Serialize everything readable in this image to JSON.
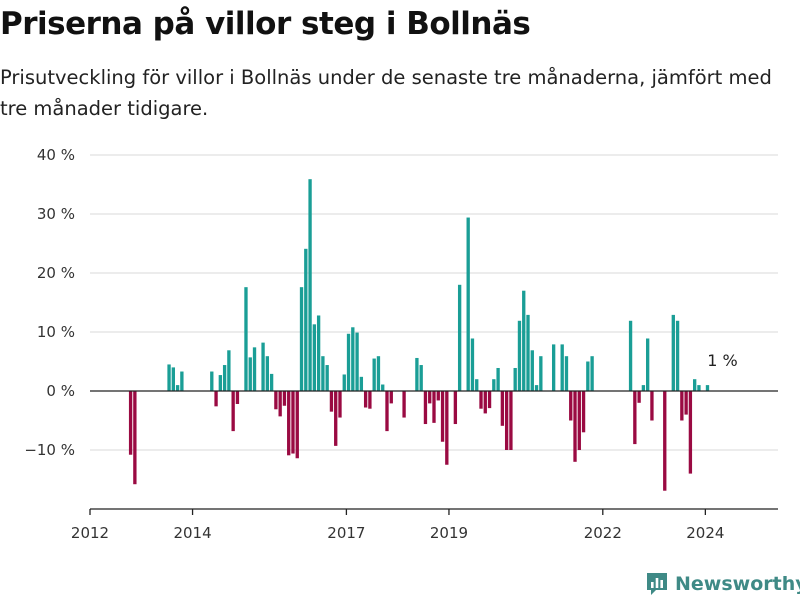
{
  "header": {
    "title": "Priserna på villor steg i Bollnäs",
    "subtitle": "Prisutveckling för villor i Bollnäs under de senaste tre månaderna, jämfört med tre månader tidigare."
  },
  "brand": {
    "name": "Newsworthy",
    "icon": "newsworthy-logo-icon",
    "color": "#3f8a86"
  },
  "colors": {
    "positive": "#1a9e96",
    "negative": "#9a0a42",
    "grid": "#d9d9d9",
    "axis": "#222222"
  },
  "chart_data": {
    "type": "bar",
    "title": "Priserna på villor steg i Bollnäs",
    "subtitle": "Prisutveckling för villor i Bollnäs under de senaste tre månaderna, jämfört med tre månader tidigare.",
    "xlabel": "",
    "ylabel": "",
    "ylim": [
      -20,
      40
    ],
    "xlim": [
      "2012-01",
      "2025-06"
    ],
    "yticks": [
      -10,
      0,
      10,
      20,
      30,
      40
    ],
    "ytick_labels": [
      "−10 %",
      "0 %",
      "10 %",
      "20 %",
      "30 %",
      "40 %"
    ],
    "xticks": [
      "2012-01",
      "2014-01",
      "2017-01",
      "2019-01",
      "2022-01",
      "2024-01"
    ],
    "xtick_labels": [
      "2012",
      "2014",
      "2017",
      "2019",
      "2022",
      "2024"
    ],
    "grid": true,
    "annotation": {
      "date": "2024-05",
      "value": 1,
      "text": "1 %"
    },
    "points": [
      {
        "date": "2012-10",
        "value": -10.8
      },
      {
        "date": "2012-11",
        "value": -15.8
      },
      {
        "date": "2013-07",
        "value": 4.5
      },
      {
        "date": "2013-08",
        "value": 4.0
      },
      {
        "date": "2013-09",
        "value": 1.0
      },
      {
        "date": "2013-10",
        "value": 3.3
      },
      {
        "date": "2014-05",
        "value": 3.3
      },
      {
        "date": "2014-06",
        "value": -2.6
      },
      {
        "date": "2014-07",
        "value": 2.7
      },
      {
        "date": "2014-08",
        "value": 4.4
      },
      {
        "date": "2014-09",
        "value": 6.9
      },
      {
        "date": "2014-10",
        "value": -6.8
      },
      {
        "date": "2014-11",
        "value": -2.2
      },
      {
        "date": "2015-01",
        "value": 17.6
      },
      {
        "date": "2015-02",
        "value": 5.7
      },
      {
        "date": "2015-03",
        "value": 7.4
      },
      {
        "date": "2015-05",
        "value": 8.2
      },
      {
        "date": "2015-06",
        "value": 5.9
      },
      {
        "date": "2015-07",
        "value": 2.9
      },
      {
        "date": "2015-08",
        "value": -3.1
      },
      {
        "date": "2015-09",
        "value": -4.3
      },
      {
        "date": "2015-10",
        "value": -2.5
      },
      {
        "date": "2015-11",
        "value": -10.9
      },
      {
        "date": "2015-12",
        "value": -10.6
      },
      {
        "date": "2016-01",
        "value": -11.4
      },
      {
        "date": "2016-02",
        "value": 17.6
      },
      {
        "date": "2016-03",
        "value": 24.1
      },
      {
        "date": "2016-04",
        "value": 35.9
      },
      {
        "date": "2016-05",
        "value": 11.3
      },
      {
        "date": "2016-06",
        "value": 12.8
      },
      {
        "date": "2016-07",
        "value": 5.9
      },
      {
        "date": "2016-08",
        "value": 4.4
      },
      {
        "date": "2016-09",
        "value": -3.5
      },
      {
        "date": "2016-10",
        "value": -9.3
      },
      {
        "date": "2016-11",
        "value": -4.5
      },
      {
        "date": "2016-12",
        "value": 2.8
      },
      {
        "date": "2017-01",
        "value": 9.7
      },
      {
        "date": "2017-02",
        "value": 10.8
      },
      {
        "date": "2017-03",
        "value": 9.9
      },
      {
        "date": "2017-04",
        "value": 2.4
      },
      {
        "date": "2017-05",
        "value": -2.8
      },
      {
        "date": "2017-06",
        "value": -3.0
      },
      {
        "date": "2017-07",
        "value": 5.5
      },
      {
        "date": "2017-08",
        "value": 5.9
      },
      {
        "date": "2017-09",
        "value": 1.1
      },
      {
        "date": "2017-10",
        "value": -6.8
      },
      {
        "date": "2017-11",
        "value": -2.1
      },
      {
        "date": "2018-02",
        "value": -4.5
      },
      {
        "date": "2018-05",
        "value": 5.6
      },
      {
        "date": "2018-06",
        "value": 4.4
      },
      {
        "date": "2018-07",
        "value": -5.6
      },
      {
        "date": "2018-08",
        "value": -2.1
      },
      {
        "date": "2018-09",
        "value": -5.4
      },
      {
        "date": "2018-10",
        "value": -1.6
      },
      {
        "date": "2018-11",
        "value": -8.6
      },
      {
        "date": "2018-12",
        "value": -12.5
      },
      {
        "date": "2019-02",
        "value": -5.6
      },
      {
        "date": "2019-03",
        "value": 18.0
      },
      {
        "date": "2019-05",
        "value": 29.4
      },
      {
        "date": "2019-06",
        "value": 8.9
      },
      {
        "date": "2019-07",
        "value": 2.0
      },
      {
        "date": "2019-08",
        "value": -3.0
      },
      {
        "date": "2019-09",
        "value": -3.8
      },
      {
        "date": "2019-10",
        "value": -2.9
      },
      {
        "date": "2019-11",
        "value": 2.0
      },
      {
        "date": "2019-12",
        "value": 3.9
      },
      {
        "date": "2020-01",
        "value": -5.9
      },
      {
        "date": "2020-02",
        "value": -10.0
      },
      {
        "date": "2020-03",
        "value": -10.0
      },
      {
        "date": "2020-04",
        "value": 3.9
      },
      {
        "date": "2020-05",
        "value": 11.9
      },
      {
        "date": "2020-06",
        "value": 17.0
      },
      {
        "date": "2020-07",
        "value": 12.9
      },
      {
        "date": "2020-08",
        "value": 6.9
      },
      {
        "date": "2020-09",
        "value": 1.0
      },
      {
        "date": "2020-10",
        "value": 5.9
      },
      {
        "date": "2021-01",
        "value": 7.9
      },
      {
        "date": "2021-03",
        "value": 7.9
      },
      {
        "date": "2021-04",
        "value": 5.9
      },
      {
        "date": "2021-05",
        "value": -5.0
      },
      {
        "date": "2021-06",
        "value": -12.0
      },
      {
        "date": "2021-07",
        "value": -10.0
      },
      {
        "date": "2021-08",
        "value": -7.0
      },
      {
        "date": "2021-09",
        "value": 5.0
      },
      {
        "date": "2021-10",
        "value": 5.9
      },
      {
        "date": "2022-07",
        "value": 11.9
      },
      {
        "date": "2022-08",
        "value": -9.0
      },
      {
        "date": "2022-09",
        "value": -2.0
      },
      {
        "date": "2022-10",
        "value": 1.0
      },
      {
        "date": "2022-11",
        "value": 8.9
      },
      {
        "date": "2022-12",
        "value": -5.0
      },
      {
        "date": "2023-03",
        "value": -16.9
      },
      {
        "date": "2023-05",
        "value": 12.9
      },
      {
        "date": "2023-06",
        "value": 11.9
      },
      {
        "date": "2023-07",
        "value": -5.0
      },
      {
        "date": "2023-08",
        "value": -4.0
      },
      {
        "date": "2023-09",
        "value": -14.0
      },
      {
        "date": "2023-10",
        "value": 2.0
      },
      {
        "date": "2023-11",
        "value": 1.0
      },
      {
        "date": "2024-01",
        "value": 1.0
      }
    ]
  }
}
